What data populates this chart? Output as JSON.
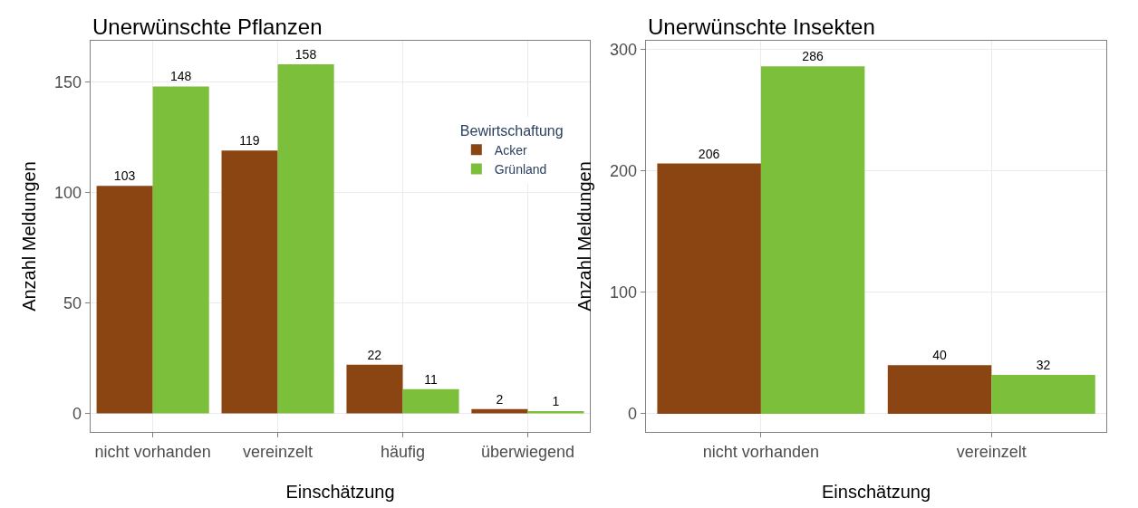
{
  "chart_data": [
    {
      "type": "bar",
      "title": "Unerwünschte Pflanzen",
      "xlabel": "Einschätzung",
      "ylabel": "Anzahl Meldungen",
      "legend_title": "Bewirtschaftung",
      "categories": [
        "nicht vorhanden",
        "vereinzelt",
        "häufig",
        "überwiegend"
      ],
      "series": [
        {
          "name": "Acker",
          "color": "#8b4513",
          "values": [
            103,
            119,
            22,
            2
          ]
        },
        {
          "name": "Grünland",
          "color": "#7bbf3a",
          "values": [
            148,
            158,
            11,
            1
          ]
        }
      ],
      "ylim": [
        -8.4,
        168.7
      ],
      "yticks": [
        0,
        50,
        100,
        150
      ],
      "grid": true,
      "legend": "right",
      "data_labels": true
    },
    {
      "type": "bar",
      "title": "Unerwünschte Insekten",
      "xlabel": "Einschätzung",
      "ylabel": "Anzahl Meldungen",
      "categories": [
        "nicht vorhanden",
        "vereinzelt"
      ],
      "series": [
        {
          "color": "#8b4513",
          "values": [
            206,
            40
          ]
        },
        {
          "color": "#7bbf3a",
          "values": [
            286,
            32
          ]
        }
      ],
      "ylim": [
        -15,
        307
      ],
      "yticks": [
        0,
        100,
        200,
        300
      ],
      "grid": true,
      "data_labels": true
    }
  ]
}
